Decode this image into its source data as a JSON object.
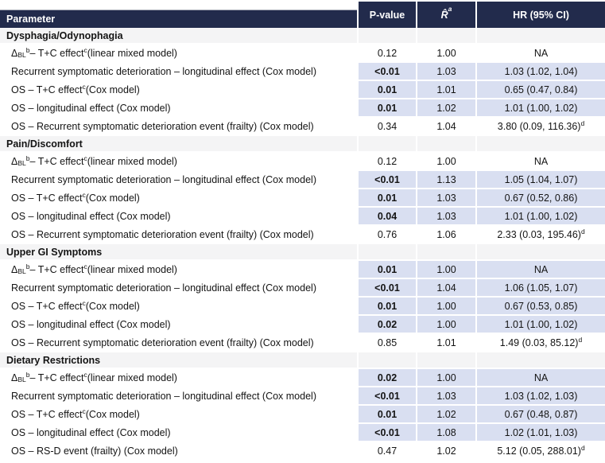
{
  "colors": {
    "header_bg": "#222b4c",
    "header_text": "#ffffff",
    "significant_highlight": "#d9dff1",
    "section_row_bg": "#f4f4f5",
    "cropped_title_teal": "#cfe9e3",
    "cropped_title_teal_dark": "#2fae93"
  },
  "table": {
    "columns": [
      {
        "key": "parameter",
        "label": "Parameter"
      },
      {
        "key": "p",
        "label": "P-value"
      },
      {
        "key": "r",
        "label": "R̂^a^"
      },
      {
        "key": "hr",
        "label": "HR (95% CI)"
      }
    ],
    "sections": [
      {
        "title": "Dysphagia/Odynophagia",
        "rows": [
          {
            "parameter": "Δ~BL~^b^ – T+C effect^c^ (linear mixed model)",
            "p": "0.12",
            "r": "1.00",
            "hr": "NA",
            "significant": false
          },
          {
            "parameter": "Recurrent symptomatic deterioration – longitudinal effect (Cox model)",
            "p": "<0.01",
            "r": "1.03",
            "hr": "1.03 (1.02, 1.04)",
            "significant": true
          },
          {
            "parameter": "OS – T+C effect^c^ (Cox model)",
            "p": "0.01",
            "r": "1.01",
            "hr": "0.65 (0.47, 0.84)",
            "significant": true
          },
          {
            "parameter": "OS – longitudinal effect (Cox model)",
            "p": "0.01",
            "r": "1.02",
            "hr": "1.01 (1.00, 1.02)",
            "significant": true
          },
          {
            "parameter": "OS – Recurrent symptomatic deterioration event (frailty) (Cox model)",
            "p": "0.34",
            "r": "1.04",
            "hr": "3.80 (0.09, 116.36)^d^",
            "significant": false
          }
        ]
      },
      {
        "title": "Pain/Discomfort",
        "rows": [
          {
            "parameter": "Δ~BL~^b^ – T+C effect^c^ (linear mixed model)",
            "p": "0.12",
            "r": "1.00",
            "hr": "NA",
            "significant": false
          },
          {
            "parameter": "Recurrent symptomatic deterioration – longitudinal effect (Cox model)",
            "p": "<0.01",
            "r": "1.13",
            "hr": "1.05 (1.04, 1.07)",
            "significant": true
          },
          {
            "parameter": "OS – T+C effect^c^ (Cox model)",
            "p": "0.01",
            "r": "1.03",
            "hr": "0.67 (0.52, 0.86)",
            "significant": true
          },
          {
            "parameter": "OS – longitudinal effect (Cox model)",
            "p": "0.04",
            "r": "1.03",
            "hr": "1.01 (1.00, 1.02)",
            "significant": true
          },
          {
            "parameter": "OS – Recurrent symptomatic deterioration event (frailty) (Cox model)",
            "p": "0.76",
            "r": "1.06",
            "hr": "2.33 (0.03, 195.46)^d^",
            "significant": false
          }
        ]
      },
      {
        "title": "Upper GI Symptoms",
        "rows": [
          {
            "parameter": "Δ~BL~^b^ – T+C effect^c^ (linear mixed model)",
            "p": "0.01",
            "r": "1.00",
            "hr": "NA",
            "significant": true
          },
          {
            "parameter": "Recurrent symptomatic deterioration – longitudinal effect (Cox model)",
            "p": "<0.01",
            "r": "1.04",
            "hr": "1.06 (1.05, 1.07)",
            "significant": true
          },
          {
            "parameter": "OS – T+C effect^c^ (Cox model)",
            "p": "0.01",
            "r": "1.00",
            "hr": "0.67 (0.53, 0.85)",
            "significant": true
          },
          {
            "parameter": "OS – longitudinal effect (Cox model)",
            "p": "0.02",
            "r": "1.00",
            "hr": "1.01 (1.00, 1.02)",
            "significant": true
          },
          {
            "parameter": "OS – Recurrent symptomatic deterioration event (frailty) (Cox model)",
            "p": "0.85",
            "r": "1.01",
            "hr": "1.49 (0.03, 85.12)^d^",
            "significant": false
          }
        ]
      },
      {
        "title": "Dietary Restrictions",
        "rows": [
          {
            "parameter": "Δ~BL~^b^ – T+C effect^c^ (linear mixed model)",
            "p": "0.02",
            "r": "1.00",
            "hr": "NA",
            "significant": true
          },
          {
            "parameter": "Recurrent symptomatic deterioration – longitudinal effect (Cox model)",
            "p": "<0.01",
            "r": "1.03",
            "hr": "1.03 (1.02, 1.03)",
            "significant": true
          },
          {
            "parameter": "OS – T+C effect^c^ (Cox model)",
            "p": "0.01",
            "r": "1.02",
            "hr": "0.67 (0.48, 0.87)",
            "significant": true
          },
          {
            "parameter": "OS – longitudinal effect (Cox model)",
            "p": "<0.01",
            "r": "1.08",
            "hr": "1.02 (1.01, 1.03)",
            "significant": true
          },
          {
            "parameter": "OS – RS-D event (frailty) (Cox model)",
            "p": "0.47",
            "r": "1.02",
            "hr": "5.12 (0.05, 288.01)^d^",
            "significant": false
          }
        ]
      }
    ]
  }
}
